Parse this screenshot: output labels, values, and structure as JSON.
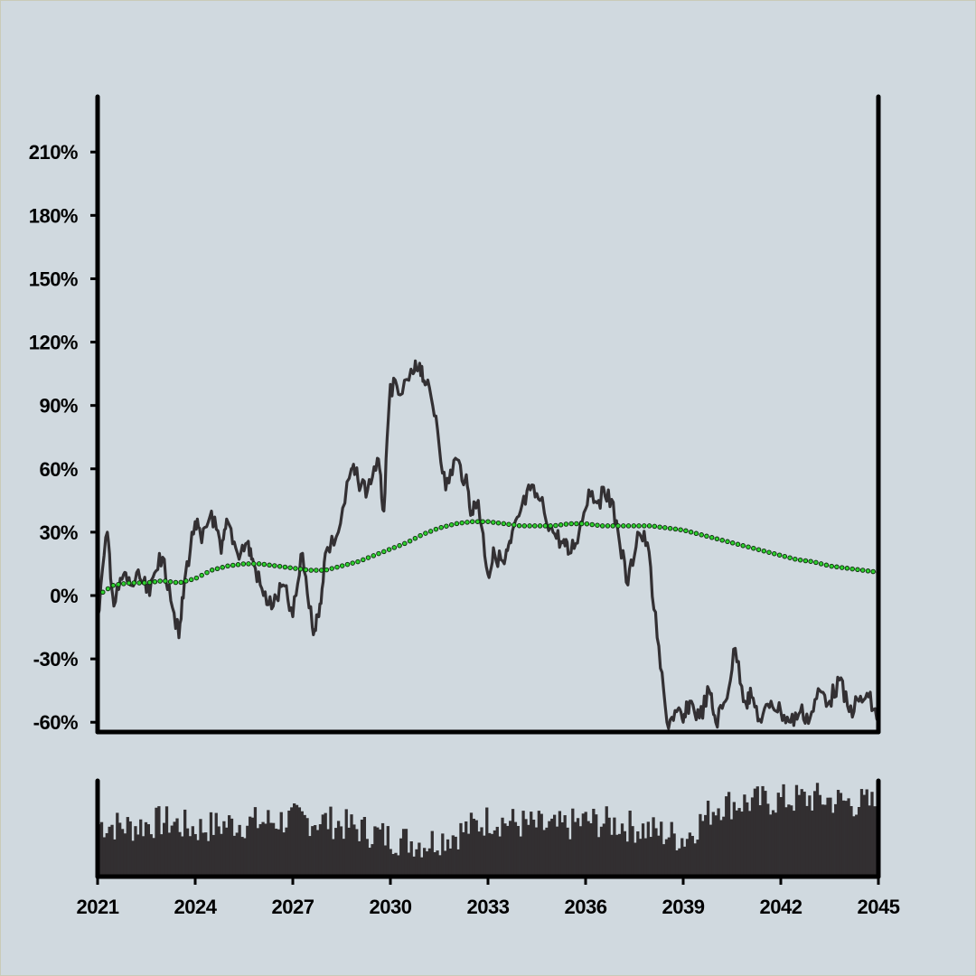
{
  "chart_data": {
    "type": "line",
    "title": "",
    "xlabel": "",
    "ylabel": "",
    "x_ticks": [
      "2021",
      "2024",
      "2027",
      "2030",
      "2033",
      "2036",
      "2039",
      "2042",
      "2045"
    ],
    "y_ticks": [
      "-60%",
      "-30%",
      "0%",
      "30%",
      "60%",
      "90%",
      "120%",
      "150%",
      "180%",
      "210%"
    ],
    "xlim": [
      2021,
      2045
    ],
    "ylim": [
      -65,
      235
    ],
    "grid": false,
    "legend": "none",
    "series": [
      {
        "style": "solid-dark-line",
        "x": [
          2021.0,
          2021.3,
          2021.5,
          2021.8,
          2022.0,
          2022.3,
          2022.6,
          2022.9,
          2023.2,
          2023.5,
          2023.7,
          2024.0,
          2024.2,
          2024.5,
          2024.8,
          2025.0,
          2025.3,
          2025.6,
          2025.8,
          2026.1,
          2026.4,
          2026.7,
          2027.0,
          2027.3,
          2027.6,
          2027.8,
          2028.0,
          2028.4,
          2028.8,
          2029.0,
          2029.3,
          2029.6,
          2029.8,
          2030.0,
          2030.3,
          2030.7,
          2030.9,
          2031.1,
          2031.4,
          2031.7,
          2032.0,
          2032.3,
          2032.5,
          2032.7,
          2033.0,
          2033.2,
          2033.5,
          2033.7,
          2034.0,
          2034.3,
          2034.6,
          2035.0,
          2035.3,
          2035.5,
          2035.8,
          2036.1,
          2036.4,
          2036.7,
          2037.0,
          2037.3,
          2037.6,
          2037.9,
          2038.2,
          2038.5,
          2038.8,
          2039.0,
          2039.2,
          2039.5,
          2039.8,
          2040.0,
          2040.3,
          2040.6,
          2040.9,
          2041.1,
          2041.4,
          2041.7,
          2042.0,
          2042.3,
          2042.6,
          2042.9,
          2043.2,
          2043.5,
          2043.8,
          2044.1,
          2044.4,
          2044.7,
          2045.0
        ],
        "values": [
          -10,
          30,
          -5,
          10,
          5,
          8,
          0,
          20,
          5,
          -20,
          10,
          35,
          25,
          40,
          20,
          35,
          20,
          25,
          15,
          0,
          -5,
          5,
          -10,
          20,
          -15,
          -10,
          20,
          30,
          60,
          55,
          50,
          65,
          40,
          100,
          95,
          105,
          110,
          100,
          85,
          50,
          65,
          55,
          40,
          45,
          10,
          20,
          15,
          25,
          40,
          50,
          45,
          30,
          25,
          20,
          30,
          50,
          45,
          50,
          30,
          5,
          30,
          25,
          -20,
          -60,
          -55,
          -60,
          -50,
          -58,
          -45,
          -60,
          -50,
          -25,
          -50,
          -48,
          -60,
          -50,
          -55,
          -60,
          -55,
          -58,
          -45,
          -50,
          -40,
          -55,
          -50,
          -48,
          -60
        ]
      },
      {
        "style": "green-dotted-line",
        "x": [
          2021.0,
          2021.5,
          2022.0,
          2022.5,
          2023.0,
          2023.5,
          2024.0,
          2024.5,
          2025.0,
          2025.5,
          2026.0,
          2026.5,
          2027.0,
          2027.5,
          2028.0,
          2028.5,
          2029.0,
          2029.5,
          2030.0,
          2030.5,
          2031.0,
          2031.5,
          2032.0,
          2032.5,
          2033.0,
          2033.5,
          2034.0,
          2034.5,
          2035.0,
          2035.5,
          2036.0,
          2036.5,
          2037.0,
          2037.5,
          2038.0,
          2038.5,
          2039.0,
          2039.5,
          2040.0,
          2040.5,
          2041.0,
          2041.5,
          2042.0,
          2042.5,
          2043.0,
          2043.5,
          2044.0,
          2044.5,
          2045.0
        ],
        "values": [
          0,
          5,
          6,
          6,
          7,
          6,
          8,
          12,
          14,
          15,
          15,
          14,
          13,
          12,
          12,
          14,
          16,
          19,
          22,
          25,
          29,
          32,
          34,
          35,
          35,
          34,
          33,
          33,
          33,
          34,
          34,
          33,
          33,
          33,
          33,
          32,
          31,
          29,
          27,
          25,
          23,
          21,
          19,
          17,
          16,
          14,
          13,
          12,
          11
        ]
      }
    ],
    "volume": {
      "style": "dark-bars",
      "x": [
        2021,
        2022,
        2023,
        2024,
        2025,
        2026,
        2027,
        2028,
        2029,
        2030,
        2031,
        2032,
        2033,
        2034,
        2035,
        2036,
        2037,
        2038,
        2039,
        2040,
        2041,
        2042,
        2043,
        2044,
        2045
      ],
      "values": [
        0.55,
        0.52,
        0.58,
        0.5,
        0.55,
        0.57,
        0.6,
        0.58,
        0.5,
        0.4,
        0.35,
        0.45,
        0.6,
        0.55,
        0.5,
        0.58,
        0.55,
        0.48,
        0.4,
        0.75,
        0.78,
        0.8,
        0.82,
        0.78,
        0.75
      ]
    }
  }
}
